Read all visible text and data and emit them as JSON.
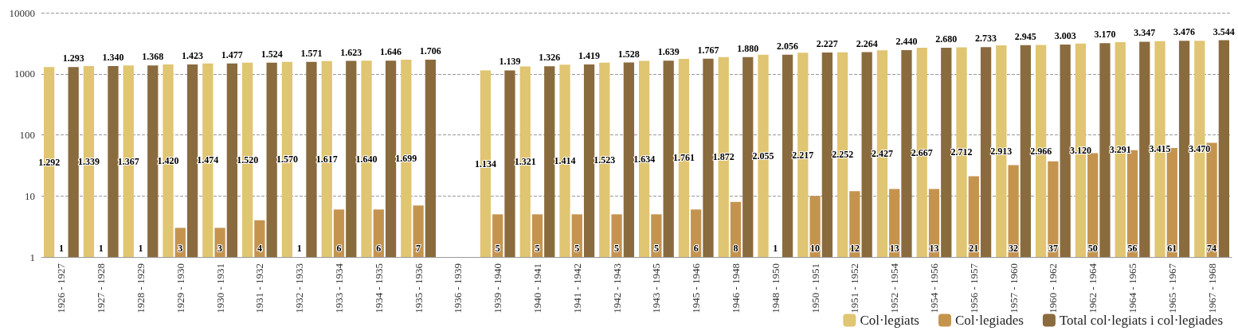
{
  "chart_data": {
    "type": "bar",
    "categories": [
      "1926 - 1927",
      "1927 - 1928",
      "1928 - 1929",
      "1929 - 1930",
      "1930 - 1931",
      "1931 - 1932",
      "1932 - 1933",
      "1933 - 1934",
      "1934 - 1935",
      "1935 - 1936",
      "1936 - 1939",
      "1939 - 1940",
      "1940 - 1941",
      "1941 - 1942",
      "1942 - 1943",
      "1943 - 1945",
      "1945 - 1946",
      "1946 - 1948",
      "1948 - 1950",
      "1950 - 1951",
      "1951 - 1952",
      "1952 - 1954",
      "1954 - 1956",
      "1956 - 1957",
      "1957 - 1960",
      "1960 - 1962",
      "1962 - 1964",
      "1964 - 1965",
      "1965 - 1967",
      "1967 - 1968"
    ],
    "series": [
      {
        "name": "Col·legiats",
        "color": "#e0c572",
        "values": [
          1292,
          1339,
          1367,
          1420,
          1474,
          1520,
          1570,
          1617,
          1640,
          1699,
          null,
          1134,
          1321,
          1414,
          1523,
          1634,
          1761,
          1872,
          2055,
          2217,
          2252,
          2427,
          2667,
          2712,
          2913,
          2966,
          3120,
          3291,
          3415,
          3470
        ],
        "value_labels": [
          "1.292",
          "1.339",
          "1.367",
          "1.420",
          "1.474",
          "1.520",
          "1.570",
          "1.617",
          "1.640",
          "1.699",
          null,
          "1.134",
          "1.321",
          "1.414",
          "1.523",
          "1.634",
          "1.761",
          "1.872",
          "2.055",
          "2.217",
          "2.252",
          "2.427",
          "2.667",
          "2.712",
          "2.913",
          "2.966",
          "3.120",
          "3.291",
          "3.415",
          "3.470"
        ]
      },
      {
        "name": "Col·legiades",
        "color": "#c4944f",
        "values": [
          1,
          1,
          1,
          3,
          3,
          4,
          1,
          6,
          6,
          7,
          null,
          5,
          5,
          5,
          5,
          5,
          6,
          8,
          1,
          10,
          12,
          13,
          13,
          21,
          32,
          37,
          50,
          56,
          61,
          74
        ],
        "value_labels": [
          "1",
          "1",
          "1",
          "3",
          "3",
          "4",
          "1",
          "6",
          "6",
          "7",
          null,
          "5",
          "5",
          "5",
          "5",
          "5",
          "6",
          "8",
          "1",
          "10",
          "12",
          "13",
          "13",
          "21",
          "32",
          "37",
          "50",
          "56",
          "61",
          "74"
        ]
      },
      {
        "name": "Total col·legiats i col·legiades",
        "color": "#8a6b3e",
        "values": [
          1293,
          1340,
          1368,
          1423,
          1477,
          1524,
          1571,
          1623,
          1646,
          1706,
          null,
          1139,
          1326,
          1419,
          1528,
          1639,
          1767,
          1880,
          2056,
          2227,
          2264,
          2440,
          2680,
          2733,
          2945,
          3003,
          3170,
          3347,
          3476,
          3544
        ],
        "value_labels": [
          "1.293",
          "1.340",
          "1.368",
          "1.423",
          "1.477",
          "1.524",
          "1.571",
          "1.623",
          "1.646",
          "1.706",
          null,
          "1.139",
          "1.326",
          "1.419",
          "1.528",
          "1.639",
          "1.767",
          "1.880",
          "2.056",
          "2.227",
          "2.264",
          "2.440",
          "2.680",
          "2.733",
          "2.945",
          "3.003",
          "3.170",
          "3.347",
          "3.476",
          "3.544"
        ]
      }
    ],
    "log": "y",
    "ylim": [
      1,
      10000
    ],
    "yticks": [
      1,
      10,
      100,
      1000,
      10000
    ],
    "grid": "y",
    "legend": "bottom right"
  }
}
